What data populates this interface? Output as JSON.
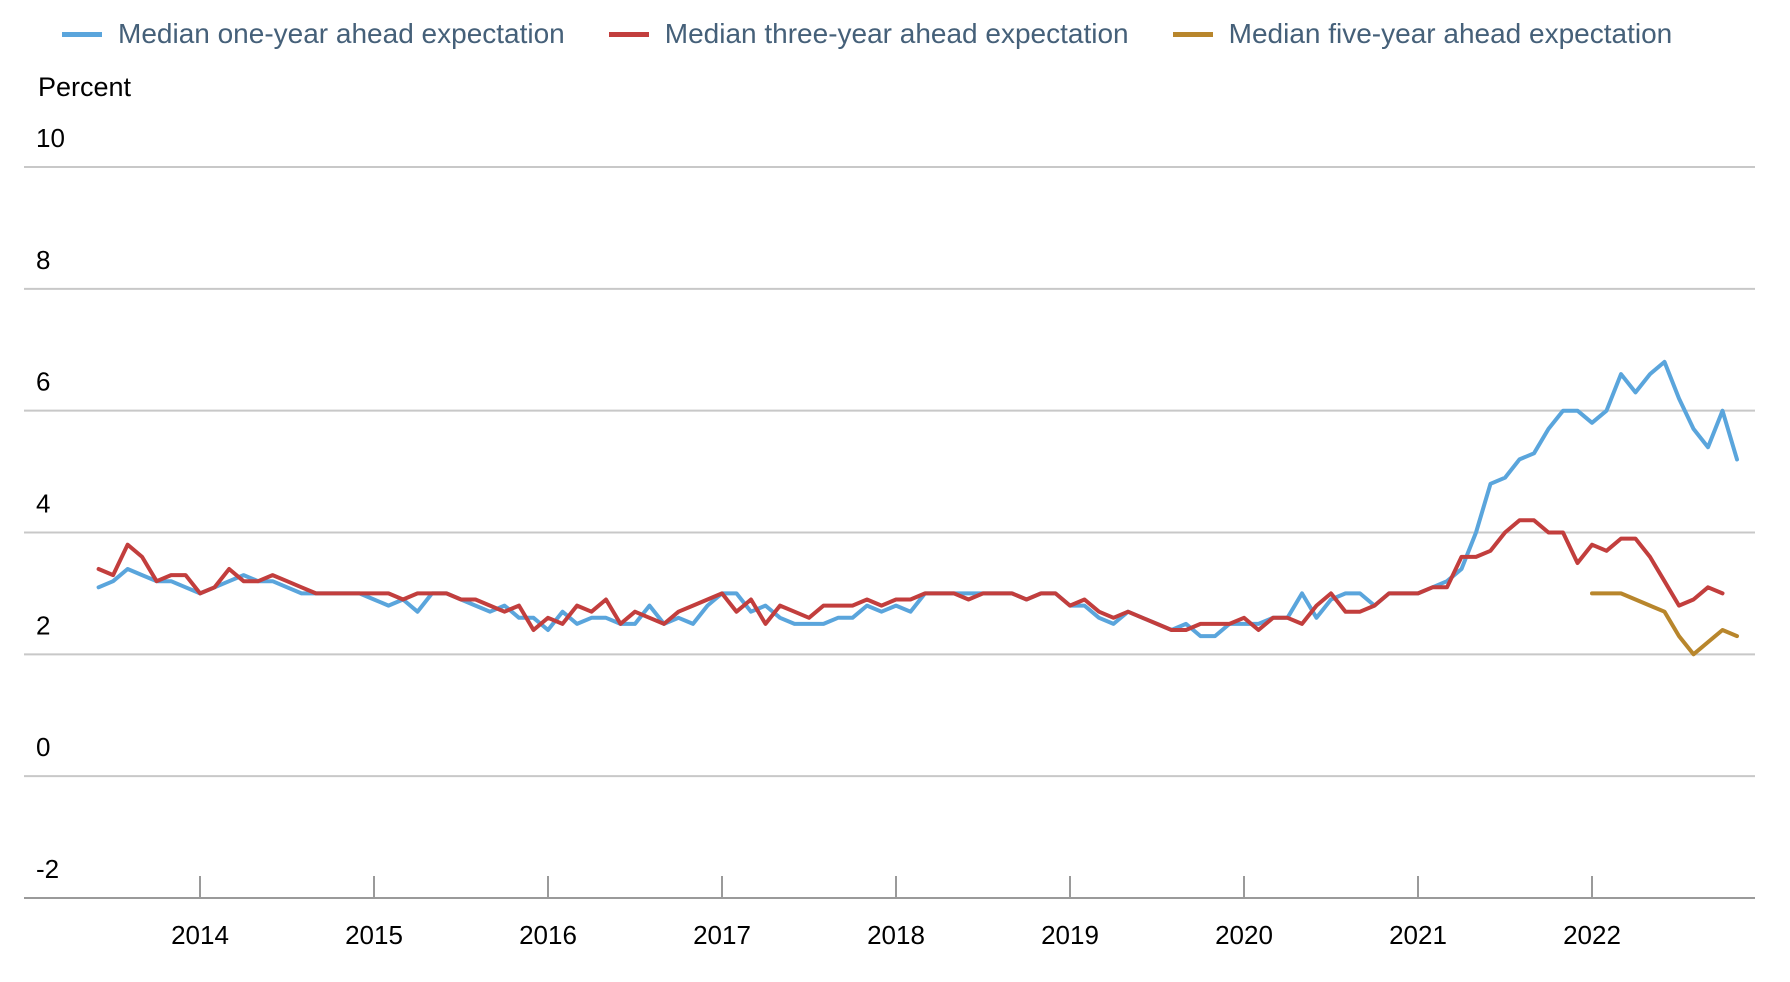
{
  "chart_data": {
    "type": "line",
    "ylabel": "Percent",
    "ylim": [
      -2,
      10
    ],
    "yticks": [
      10,
      8,
      6,
      4,
      2,
      0,
      -2
    ],
    "xlim": [
      2013.417,
      2022.917
    ],
    "xticks": [
      2014,
      2015,
      2016,
      2017,
      2018,
      2019,
      2020,
      2021,
      2022
    ],
    "grid": "horizontal",
    "legend_position": "top",
    "series": [
      {
        "name": "Median one-year ahead expectation",
        "color": "#5aa5dc",
        "start": 2013.417,
        "step": 0.08333,
        "values": [
          3.1,
          3.2,
          3.4,
          3.3,
          3.2,
          3.2,
          3.1,
          3.0,
          3.1,
          3.2,
          3.3,
          3.2,
          3.2,
          3.1,
          3.0,
          3.0,
          3.0,
          3.0,
          3.0,
          2.9,
          2.8,
          2.9,
          2.7,
          3.0,
          3.0,
          2.9,
          2.8,
          2.7,
          2.8,
          2.6,
          2.6,
          2.4,
          2.7,
          2.5,
          2.6,
          2.6,
          2.5,
          2.5,
          2.8,
          2.5,
          2.6,
          2.5,
          2.8,
          3.0,
          3.0,
          2.7,
          2.8,
          2.6,
          2.5,
          2.5,
          2.5,
          2.6,
          2.6,
          2.8,
          2.7,
          2.8,
          2.7,
          3.0,
          3.0,
          3.0,
          3.0,
          3.0,
          3.0,
          3.0,
          2.9,
          3.0,
          3.0,
          2.8,
          2.8,
          2.6,
          2.5,
          2.7,
          2.6,
          2.5,
          2.4,
          2.5,
          2.3,
          2.3,
          2.5,
          2.5,
          2.5,
          2.6,
          2.6,
          3.0,
          2.6,
          2.9,
          3.0,
          3.0,
          2.8,
          3.0,
          3.0,
          3.0,
          3.1,
          3.2,
          3.4,
          4.0,
          4.8,
          4.9,
          5.2,
          5.3,
          5.7,
          6.0,
          6.0,
          5.8,
          6.0,
          6.6,
          6.3,
          6.6,
          6.8,
          6.2,
          5.7,
          5.4,
          6.0,
          5.2
        ]
      },
      {
        "name": "Median three-year ahead expectation",
        "color": "#c23e3d",
        "start": 2013.417,
        "step": 0.08333,
        "values": [
          3.4,
          3.3,
          3.8,
          3.6,
          3.2,
          3.3,
          3.3,
          3.0,
          3.1,
          3.4,
          3.2,
          3.2,
          3.3,
          3.2,
          3.1,
          3.0,
          3.0,
          3.0,
          3.0,
          3.0,
          3.0,
          2.9,
          3.0,
          3.0,
          3.0,
          2.9,
          2.9,
          2.8,
          2.7,
          2.8,
          2.4,
          2.6,
          2.5,
          2.8,
          2.7,
          2.9,
          2.5,
          2.7,
          2.6,
          2.5,
          2.7,
          2.8,
          2.9,
          3.0,
          2.7,
          2.9,
          2.5,
          2.8,
          2.7,
          2.6,
          2.8,
          2.8,
          2.8,
          2.9,
          2.8,
          2.9,
          2.9,
          3.0,
          3.0,
          3.0,
          2.9,
          3.0,
          3.0,
          3.0,
          2.9,
          3.0,
          3.0,
          2.8,
          2.9,
          2.7,
          2.6,
          2.7,
          2.6,
          2.5,
          2.4,
          2.4,
          2.5,
          2.5,
          2.5,
          2.6,
          2.4,
          2.6,
          2.6,
          2.5,
          2.8,
          3.0,
          2.7,
          2.7,
          2.8,
          3.0,
          3.0,
          3.0,
          3.1,
          3.1,
          3.6,
          3.6,
          3.7,
          4.0,
          4.2,
          4.2,
          4.0,
          4.0,
          3.5,
          3.8,
          3.7,
          3.9,
          3.9,
          3.6,
          3.2,
          2.8,
          2.9,
          3.1,
          3.0
        ]
      },
      {
        "name": "Median five-year ahead expectation",
        "color": "#b8862c",
        "start": 2022.0,
        "step": 0.08333,
        "values": [
          3.0,
          3.0,
          3.0,
          2.9,
          2.8,
          2.7,
          2.3,
          2.0,
          2.2,
          2.4,
          2.3
        ]
      }
    ]
  }
}
